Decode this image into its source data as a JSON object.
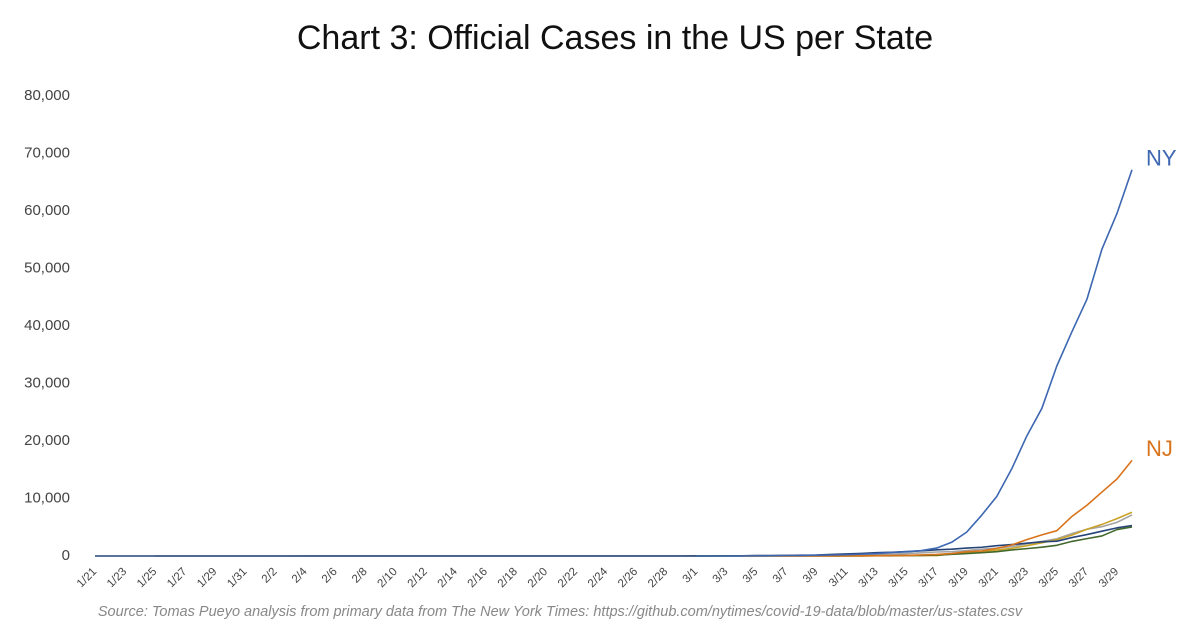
{
  "chart_data": {
    "type": "line",
    "title": "Chart 3: Official Cases in the US per State",
    "note": "Source: Tomas Pueyo analysis from primary data from The New York Times: https://github.com/nytimes/covid-19-data/blob/master/us-states.csv",
    "categories": [
      "1/21",
      null,
      "1/23",
      null,
      "1/25",
      null,
      "1/27",
      null,
      "1/29",
      null,
      "1/31",
      null,
      "2/2",
      null,
      "2/4",
      null,
      "2/6",
      null,
      "2/8",
      null,
      "2/10",
      null,
      "2/12",
      null,
      "2/14",
      null,
      "2/16",
      null,
      "2/18",
      null,
      "2/20",
      null,
      "2/22",
      null,
      "2/24",
      null,
      "2/26",
      null,
      "2/28",
      null,
      "3/1",
      null,
      "3/3",
      null,
      "3/5",
      null,
      "3/7",
      null,
      "3/9",
      null,
      "3/11",
      null,
      "3/13",
      null,
      "3/15",
      null,
      "3/17",
      null,
      "3/19",
      null,
      "3/21",
      null,
      "3/23",
      null,
      "3/25",
      null,
      "3/27",
      null,
      "3/29",
      null
    ],
    "ylim": [
      0,
      80000
    ],
    "yticks": [
      0,
      {
        "value": 10000,
        "label": "10,000"
      },
      {
        "value": 20000,
        "label": "20,000"
      },
      {
        "value": 30000,
        "label": "30,000"
      },
      {
        "value": 40000,
        "label": "40,000"
      },
      {
        "value": 50000,
        "label": "50,000"
      },
      {
        "value": 60000,
        "label": "60,000"
      },
      {
        "value": 70000,
        "label": "70,000"
      },
      {
        "value": 80000,
        "label": "80,000"
      }
    ],
    "grid": false,
    "series": [
      {
        "color": "#a5a5a5",
        "values": [
          null,
          null,
          null,
          null,
          1,
          2,
          2,
          2,
          2,
          2,
          2,
          2,
          2,
          2,
          6,
          6,
          6,
          6,
          6,
          6,
          6,
          6,
          6,
          6,
          6,
          6,
          6,
          6,
          6,
          6,
          6,
          6,
          6,
          6,
          6,
          6,
          6,
          6,
          6,
          6,
          12,
          21,
          25,
          35,
          51,
          59,
          81,
          95,
          101,
          144,
          177,
          221,
          282,
          340,
          426,
          557,
          698,
          751,
          952,
          1177,
          1364,
          1642,
          2108,
          2538,
          2998,
          3899,
          4657,
          5095,
          5852,
          7138
        ]
      },
      {
        "color": "#c9a227",
        "values": [
          null,
          null,
          null,
          null,
          null,
          null,
          null,
          null,
          null,
          null,
          null,
          null,
          null,
          null,
          null,
          null,
          null,
          null,
          null,
          null,
          null,
          null,
          null,
          null,
          null,
          null,
          null,
          null,
          null,
          null,
          null,
          null,
          null,
          null,
          null,
          null,
          null,
          null,
          null,
          null,
          null,
          null,
          null,
          null,
          null,
          null,
          null,
          null,
          null,
          2,
          2,
          12,
          25,
          33,
          53,
          65,
          83,
          334,
          552,
          788,
          1037,
          1329,
          1793,
          2296,
          2845,
          3634,
          4658,
          5488,
          6498,
          7615
        ]
      },
      {
        "color": "#264478",
        "values": [
          1,
          1,
          1,
          1,
          1,
          1,
          1,
          1,
          1,
          1,
          1,
          1,
          1,
          1,
          1,
          1,
          1,
          1,
          1,
          1,
          1,
          1,
          1,
          1,
          1,
          1,
          1,
          1,
          1,
          1,
          1,
          1,
          1,
          1,
          1,
          1,
          1,
          1,
          1,
          2,
          11,
          18,
          27,
          39,
          70,
          79,
          102,
          136,
          162,
          267,
          366,
          442,
          568,
          642,
          769,
          904,
          1076,
          1187,
          1376,
          1524,
          1793,
          1996,
          2221,
          2469,
          2580,
          3207,
          3723,
          4311,
          4896,
          5292
        ]
      },
      {
        "color": "#43682b",
        "values": [
          null,
          null,
          null,
          null,
          null,
          null,
          null,
          null,
          null,
          null,
          null,
          null,
          null,
          null,
          null,
          null,
          null,
          null,
          null,
          null,
          null,
          null,
          null,
          null,
          null,
          null,
          null,
          null,
          null,
          null,
          null,
          null,
          null,
          null,
          null,
          null,
          null,
          null,
          null,
          null,
          3,
          4,
          4,
          4,
          5,
          6,
          7,
          7,
          11,
          19,
          25,
          32,
          46,
          64,
          93,
          105,
          160,
          288,
          422,
          585,
          753,
          1049,
          1285,
          1535,
          1865,
          2538,
          3024,
          3491,
          4596,
          5057
        ]
      },
      {
        "name": "NJ",
        "color": "#d9731c",
        "values": [
          null,
          null,
          null,
          null,
          null,
          null,
          null,
          null,
          null,
          null,
          null,
          null,
          null,
          null,
          null,
          null,
          null,
          null,
          null,
          null,
          null,
          null,
          null,
          null,
          null,
          null,
          null,
          null,
          null,
          null,
          null,
          null,
          null,
          null,
          null,
          null,
          null,
          null,
          null,
          null,
          null,
          null,
          null,
          1,
          2,
          4,
          4,
          6,
          11,
          15,
          23,
          29,
          50,
          69,
          98,
          178,
          267,
          427,
          742,
          890,
          1327,
          1914,
          2844,
          3675,
          4402,
          6876,
          8825,
          11124,
          13386,
          16636
        ]
      },
      {
        "name": "NY",
        "color": "#3d67b1",
        "values": [
          null,
          null,
          null,
          null,
          null,
          null,
          null,
          null,
          null,
          null,
          null,
          null,
          null,
          null,
          null,
          null,
          null,
          null,
          null,
          null,
          null,
          null,
          null,
          null,
          null,
          null,
          null,
          null,
          null,
          null,
          null,
          null,
          null,
          null,
          null,
          null,
          null,
          null,
          null,
          null,
          1,
          1,
          2,
          11,
          22,
          44,
          89,
          106,
          142,
          173,
          217,
          326,
          421,
          610,
          732,
          950,
          1374,
          2382,
          4152,
          7102,
          10356,
          15168,
          20875,
          25665,
          33066,
          38987,
          44635,
          53363,
          59568,
          67174
        ]
      }
    ]
  }
}
